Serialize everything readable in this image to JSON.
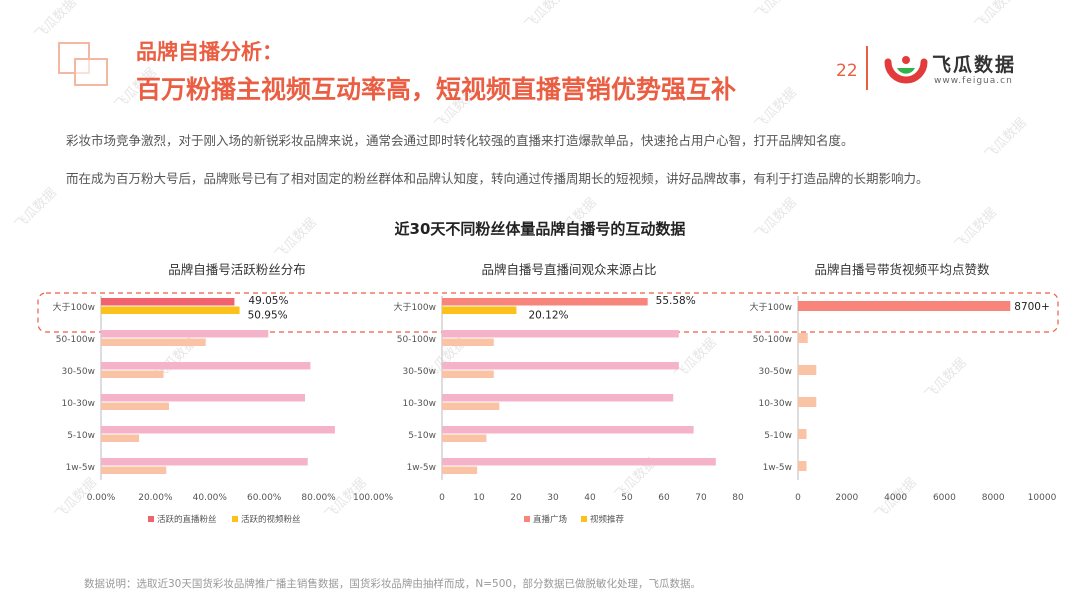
{
  "header": {
    "title_small": "品牌自播分析：",
    "title_main": "百万粉播主视频互动率高，短视频直播营销优势强互补",
    "page_number": "22",
    "brand_name": "飞瓜数据",
    "brand_url": "www.feigua.cn",
    "logo_icon": "feigua-logo-icon"
  },
  "body": {
    "paragraph1": "彩妆市场竞争激烈，对于刚入场的新锐彩妆品牌来说，通常会通过即时转化较强的直播来打造爆款单品，快速抢占用户心智，打开品牌知名度。",
    "paragraph2": "而在成为百万粉大号后，品牌账号已有了相对固定的粉丝群体和品牌认知度，转向通过传播周期长的短视频，讲好品牌故事，有利于打造品牌的长期影响力。"
  },
  "main_chart_title": "近30天不同粉丝体量品牌自播号的互动数据",
  "footnote": "数据说明：选取近30天国货彩妆品牌推广播主销售数据，国货彩妆品牌由抽样而成，N=500，部分数据已做脱敏化处理，飞瓜数据。",
  "watermark": "飞瓜数据",
  "colors": {
    "accent": "#ea5f43",
    "dark_pink": "#f0636e",
    "light_pink": "#f4b3c8",
    "yellow": "#fcc21b",
    "peach": "#fbc3a6",
    "salmon": "#f7857c",
    "highlight_border": "#ea5f43"
  },
  "chart_data": [
    {
      "type": "bar",
      "orientation": "horizontal",
      "title": "品牌自播号活跃粉丝分布",
      "categories": [
        "大于100w",
        "50-100w",
        "30-50w",
        "10-30w",
        "5-10w",
        "1w-5w"
      ],
      "series": [
        {
          "name": "活跃的直播粉丝",
          "values": [
            49.05,
            61.5,
            77,
            75,
            86,
            76
          ]
        },
        {
          "name": "活跃的视频粉丝",
          "values": [
            50.95,
            38.5,
            23,
            25,
            14,
            24
          ]
        }
      ],
      "data_labels": [
        "49.05%",
        "50.95%"
      ],
      "xlim": [
        0,
        100
      ],
      "xticks": [
        "0.00%",
        "20.00%",
        "40.00%",
        "60.00%",
        "80.00%",
        "100.00%"
      ],
      "legend": "bottom"
    },
    {
      "type": "bar",
      "orientation": "horizontal",
      "title": "品牌自播号直播间观众来源占比",
      "categories": [
        "大于100w",
        "50-100w",
        "30-50w",
        "10-30w",
        "5-10w",
        "1w-5w"
      ],
      "series": [
        {
          "name": "直播广场",
          "values": [
            55.58,
            64,
            64,
            62.5,
            68,
            74
          ]
        },
        {
          "name": "视频推荐",
          "values": [
            20.12,
            14,
            14,
            15.5,
            12,
            9.5
          ]
        }
      ],
      "data_labels": [
        "55.58%",
        "20.12%"
      ],
      "xlim": [
        0,
        80
      ],
      "xticks": [
        "0",
        "10",
        "20",
        "30",
        "40",
        "50",
        "60",
        "70",
        "80"
      ],
      "legend": "bottom"
    },
    {
      "type": "bar",
      "orientation": "horizontal",
      "title": "品牌自播号带货视频平均点赞数",
      "categories": [
        "大于100w",
        "50-100w",
        "30-50w",
        "10-30w",
        "5-10w",
        "1w-5w"
      ],
      "series": [
        {
          "values": [
            8700,
            400,
            750,
            750,
            350,
            350
          ]
        }
      ],
      "data_labels": [
        "8700+"
      ],
      "xlim": [
        0,
        10000
      ],
      "xticks": [
        "0",
        "2000",
        "4000",
        "6000",
        "8000",
        "10000"
      ],
      "legend": "none"
    }
  ]
}
